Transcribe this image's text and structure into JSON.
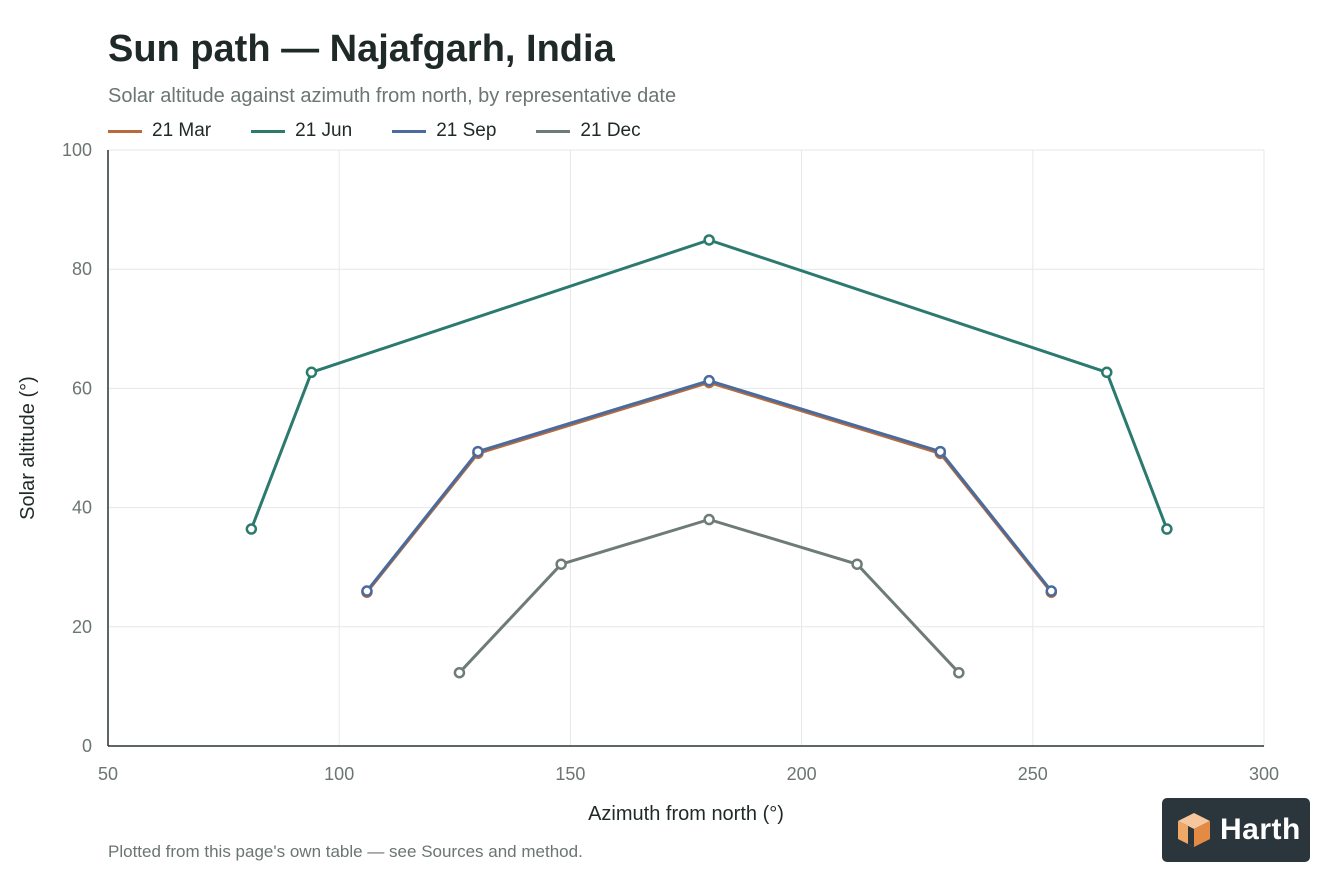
{
  "chart_data": {
    "type": "line",
    "title": "Sun path — Najafgarh, India",
    "subtitle": "Solar altitude against azimuth from north, by representative date",
    "xlabel": "Azimuth from north (°)",
    "ylabel": "Solar altitude (°)",
    "xlim": [
      50,
      300
    ],
    "ylim": [
      0,
      100
    ],
    "xticks": [
      50,
      100,
      150,
      200,
      250,
      300
    ],
    "yticks": [
      0,
      20,
      40,
      60,
      80,
      100
    ],
    "grid": true,
    "legend_position": "top-left",
    "series": [
      {
        "name": "21 Mar",
        "color": "#b86a3c",
        "x": [
          106,
          130,
          180,
          230,
          254
        ],
        "y": [
          25.8,
          49.1,
          61.0,
          49.1,
          25.8
        ]
      },
      {
        "name": "21 Jun",
        "color": "#2c7a6e",
        "x": [
          81,
          94,
          180,
          266,
          279
        ],
        "y": [
          36.4,
          62.7,
          84.9,
          62.7,
          36.4
        ]
      },
      {
        "name": "21 Sep",
        "color": "#4a6b9c",
        "x": [
          106,
          130,
          180,
          230,
          254
        ],
        "y": [
          26.0,
          49.4,
          61.3,
          49.4,
          26.0
        ]
      },
      {
        "name": "21 Dec",
        "color": "#6f7b77",
        "x": [
          126,
          148,
          180,
          212,
          234
        ],
        "y": [
          12.3,
          30.5,
          38.0,
          30.5,
          12.3
        ]
      }
    ]
  },
  "footnote": "Plotted from this page's own table — see Sources and method.",
  "logo": {
    "text": "Harth",
    "icon": "harth-cube-logo-icon"
  }
}
